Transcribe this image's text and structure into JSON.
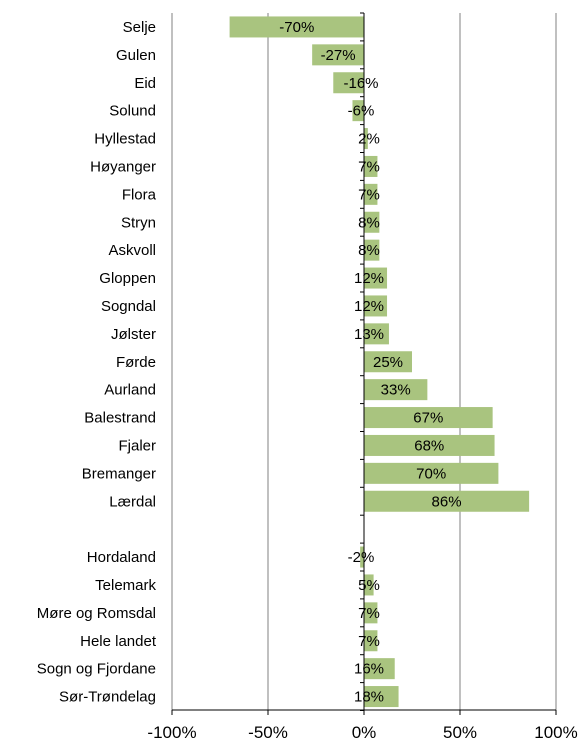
{
  "chart_data": {
    "type": "bar",
    "orientation": "horizontal",
    "categories": [
      "Selje",
      "Gulen",
      "Eid",
      "Solund",
      "Hyllestad",
      "Høyanger",
      "Flora",
      "Stryn",
      "Askvoll",
      "Gloppen",
      "Sogndal",
      "Jølster",
      "Førde",
      "Aurland",
      "Balestrand",
      "Fjaler",
      "Bremanger",
      "Lærdal",
      "",
      "Hordaland",
      "Telemark",
      "Møre og Romsdal",
      "Hele landet",
      "Sogn og Fjordane",
      "Sør-Trøndelag"
    ],
    "values": [
      -70,
      -27,
      -16,
      -6,
      2,
      7,
      7,
      8,
      8,
      12,
      12,
      13,
      25,
      33,
      67,
      68,
      70,
      86,
      null,
      -2,
      5,
      7,
      7,
      16,
      18
    ],
    "data_labels": [
      "-70%",
      "-27%",
      "-16%",
      "-6%",
      "2%",
      "7%",
      "7%",
      "8%",
      "8%",
      "12%",
      "12%",
      "13%",
      "25%",
      "33%",
      "67%",
      "68%",
      "70%",
      "86%",
      "",
      "-2%",
      "5%",
      "7%",
      "7%",
      "16%",
      "18%"
    ],
    "xlim": [
      -100,
      100
    ],
    "x_ticks": [
      -100,
      -50,
      0,
      50,
      100
    ],
    "x_tick_labels": [
      "-100%",
      "-50%",
      "0%",
      "50%",
      "100%"
    ],
    "bar_color": "#a9c47f",
    "grid": true,
    "title": "",
    "xlabel": "",
    "ylabel": ""
  }
}
